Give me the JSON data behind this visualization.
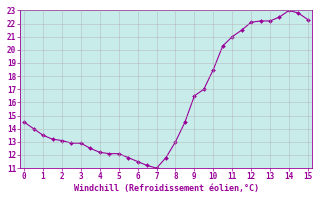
{
  "xlabel": "Windchill (Refroidissement éolien,°C)",
  "x": [
    0,
    0.5,
    1,
    1.5,
    2,
    2.5,
    3,
    3.5,
    4,
    4.5,
    5,
    5.5,
    6,
    6.5,
    7,
    7.5,
    8,
    8.5,
    9,
    9.5,
    10,
    10.5,
    11,
    11.5,
    12,
    12.5,
    13,
    13.5,
    14,
    14.5,
    15
  ],
  "y": [
    14.5,
    14.0,
    13.5,
    13.2,
    13.1,
    12.9,
    12.9,
    12.5,
    12.2,
    12.1,
    12.1,
    11.8,
    11.5,
    11.2,
    11.0,
    11.8,
    13.0,
    14.5,
    16.5,
    17.0,
    18.5,
    20.3,
    21.0,
    21.5,
    22.1,
    22.2,
    22.2,
    22.5,
    23.0,
    22.8,
    22.3
  ],
  "xlim": [
    -0.2,
    15.2
  ],
  "ylim": [
    11,
    23
  ],
  "xticks": [
    0,
    1,
    2,
    3,
    4,
    5,
    6,
    7,
    8,
    9,
    10,
    11,
    12,
    13,
    14,
    15
  ],
  "yticks": [
    11,
    12,
    13,
    14,
    15,
    16,
    17,
    18,
    19,
    20,
    21,
    22,
    23
  ],
  "line_color": "#990099",
  "marker_color": "#990099",
  "bg_color": "#c8ecea",
  "outer_bg": "#ffffff",
  "grid_color": "#b0b0b0",
  "text_color": "#990099",
  "tick_color": "#990099"
}
